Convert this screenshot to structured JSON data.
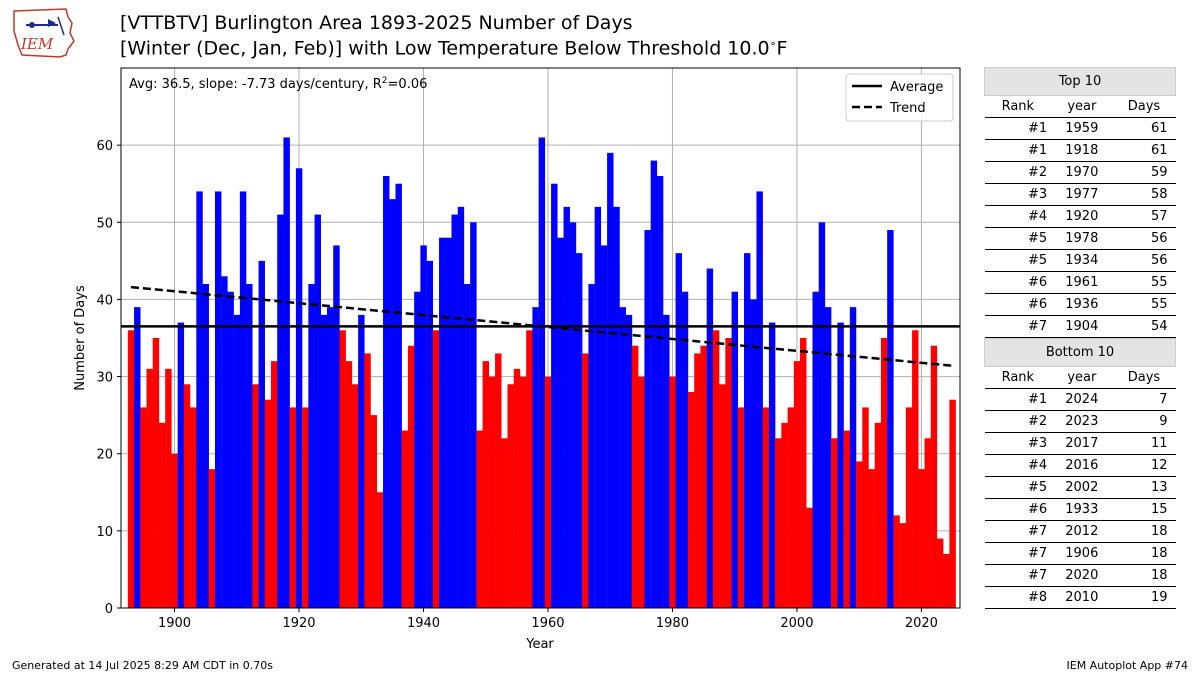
{
  "logo": {
    "text": "IEM"
  },
  "title": {
    "line1": "[VTTBTV] Burlington Area 1893-2025 Number of Days",
    "line2_prefix": "[Winter (Dec, Jan, Feb)] with Low Temperature Below Threshold 10.0",
    "line2_unit": "F"
  },
  "chart_data": {
    "type": "bar",
    "xlabel": "Year",
    "ylabel": "Number of Days",
    "xlim": [
      1891.4,
      2026.2
    ],
    "ylim": [
      0,
      70
    ],
    "xticks": [
      1900,
      1920,
      1940,
      1960,
      1980,
      2000,
      2020
    ],
    "yticks": [
      0,
      10,
      20,
      30,
      40,
      50,
      60
    ],
    "grid": true,
    "start_year": 1893,
    "values": [
      36,
      39,
      26,
      31,
      35,
      24,
      31,
      20,
      37,
      29,
      26,
      54,
      42,
      18,
      54,
      43,
      41,
      38,
      54,
      42,
      29,
      45,
      27,
      32,
      51,
      61,
      26,
      57,
      26,
      42,
      51,
      38,
      39,
      47,
      36,
      32,
      29,
      38,
      33,
      25,
      15,
      56,
      53,
      55,
      23,
      34,
      41,
      47,
      45,
      36,
      48,
      48,
      51,
      52,
      42,
      50,
      23,
      32,
      30,
      33,
      22,
      29,
      31,
      30,
      36,
      39,
      61,
      30,
      55,
      48,
      52,
      50,
      46,
      33,
      42,
      52,
      47,
      59,
      52,
      39,
      38,
      34,
      30,
      49,
      58,
      56,
      38,
      30,
      46,
      41,
      28,
      33,
      34,
      44,
      36,
      29,
      35,
      41,
      26,
      46,
      40,
      54,
      26,
      37,
      22,
      24,
      26,
      32,
      35,
      13,
      41,
      50,
      39,
      22,
      37,
      23,
      39,
      19,
      26,
      18,
      24,
      35,
      49,
      12,
      11,
      26,
      36,
      18,
      22,
      34,
      9,
      7,
      27
    ],
    "average": {
      "value": 36.5,
      "color": "#000000",
      "label": "Average"
    },
    "trend": {
      "start": [
        1893,
        41.6
      ],
      "end": [
        2025,
        31.4
      ],
      "label": "Trend"
    },
    "annotation_prefix": "Avg: 36.5, slope: -7.73 days/century, R",
    "annotation_sup": "2",
    "annotation_suffix": "=0.06",
    "above_color": "#0000ff",
    "below_color": "#ff0000",
    "legend_position": "top-right"
  },
  "top10": {
    "caption": "Top 10",
    "headers": [
      "Rank",
      "year",
      "Days"
    ],
    "rows": [
      [
        "#1",
        "1959",
        "61"
      ],
      [
        "#1",
        "1918",
        "61"
      ],
      [
        "#2",
        "1970",
        "59"
      ],
      [
        "#3",
        "1977",
        "58"
      ],
      [
        "#4",
        "1920",
        "57"
      ],
      [
        "#5",
        "1978",
        "56"
      ],
      [
        "#5",
        "1934",
        "56"
      ],
      [
        "#6",
        "1961",
        "55"
      ],
      [
        "#6",
        "1936",
        "55"
      ],
      [
        "#7",
        "1904",
        "54"
      ]
    ]
  },
  "bottom10": {
    "caption": "Bottom 10",
    "headers": [
      "Rank",
      "year",
      "Days"
    ],
    "rows": [
      [
        "#1",
        "2024",
        "7"
      ],
      [
        "#2",
        "2023",
        "9"
      ],
      [
        "#3",
        "2017",
        "11"
      ],
      [
        "#4",
        "2016",
        "12"
      ],
      [
        "#5",
        "2002",
        "13"
      ],
      [
        "#6",
        "1933",
        "15"
      ],
      [
        "#7",
        "2012",
        "18"
      ],
      [
        "#7",
        "1906",
        "18"
      ],
      [
        "#7",
        "2020",
        "18"
      ],
      [
        "#8",
        "2010",
        "19"
      ]
    ]
  },
  "footer": {
    "left": "Generated at 14 Jul 2025 8:29 AM CDT in 0.70s",
    "right": "IEM Autoplot App #74"
  }
}
